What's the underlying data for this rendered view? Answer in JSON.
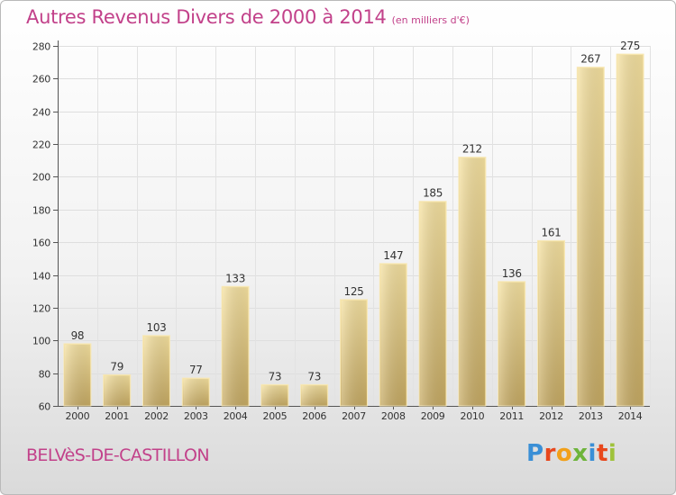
{
  "header": {
    "title": "Autres Revenus Divers de 2000 à 2014",
    "subtitle": "(en milliers d'€)"
  },
  "footer": {
    "city": "BELVèS-DE-CASTILLON",
    "logo": "Proxiti",
    "logo_colors": [
      "#3a8fd6",
      "#e8471c",
      "#f2a019",
      "#6db43a",
      "#3a8fd6",
      "#e8471c",
      "#9fc23a"
    ]
  },
  "colors": {
    "title": "#c2418a",
    "bar_light": "#f4df9b",
    "bar_dark": "#c8ad68",
    "grid": "#dddddd",
    "axis_text": "#333333"
  },
  "chart_data": {
    "type": "bar",
    "title": "Autres Revenus Divers de 2000 à 2014",
    "subtitle": "(en milliers d'€)",
    "xlabel": "",
    "ylabel": "",
    "categories": [
      "2000",
      "2001",
      "2002",
      "2003",
      "2004",
      "2005",
      "2006",
      "2007",
      "2008",
      "2009",
      "2010",
      "2011",
      "2012",
      "2013",
      "2014"
    ],
    "values": [
      98,
      79,
      103,
      77,
      133,
      73,
      73,
      125,
      147,
      185,
      212,
      136,
      161,
      267,
      275
    ],
    "ylim": [
      60,
      280
    ],
    "yticks": [
      60,
      80,
      100,
      120,
      140,
      160,
      180,
      200,
      220,
      240,
      260,
      280
    ],
    "grid": true,
    "data_labels": true
  }
}
